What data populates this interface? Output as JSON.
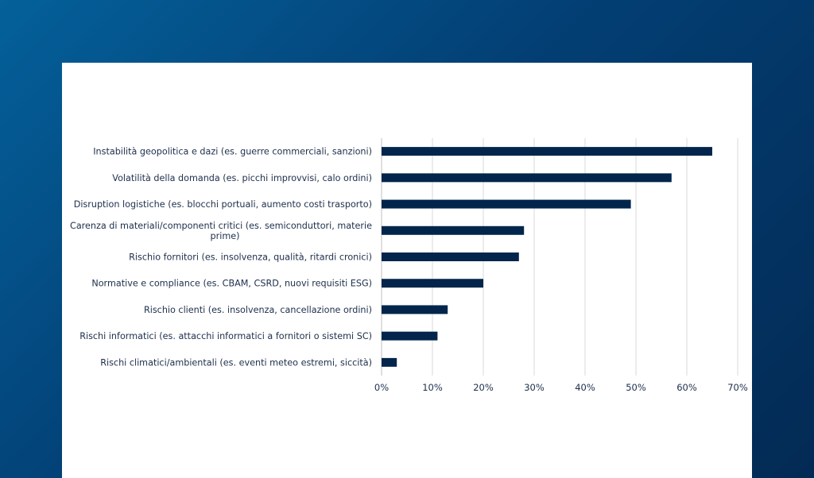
{
  "chart_data": {
    "type": "bar",
    "orientation": "horizontal",
    "title": "",
    "xlabel": "",
    "ylabel": "",
    "xlim": [
      0,
      70
    ],
    "x_ticks": [
      0,
      10,
      20,
      30,
      40,
      50,
      60,
      70
    ],
    "tick_format": "{v}%",
    "grid": "vertical",
    "bar_color": "#03254c",
    "categories": [
      [
        "Instabilità geopolitica e dazi (es. guerre commerciali, sanzioni)"
      ],
      [
        "Volatilità della domanda (es. picchi improvvisi, calo ordini)"
      ],
      [
        "Disruption logistiche (es. blocchi portuali, aumento costi trasporto)"
      ],
      [
        "Carenza di materiali/componenti critici (es. semiconduttori, materie",
        "prime)"
      ],
      [
        "Rischio fornitori (es. insolvenza, qualità, ritardi cronici)"
      ],
      [
        "Normative e compliance (es. CBAM, CSRD, nuovi requisiti ESG)"
      ],
      [
        "Rischio clienti (es. insolvenza, cancellazione ordini)"
      ],
      [
        "Rischi informatici (es. attacchi informatici a fornitori o sistemi SC)"
      ],
      [
        "Rischi climatici/ambientali (es. eventi meteo estremi, siccità)"
      ]
    ],
    "values": [
      65,
      57,
      49,
      28,
      27,
      20,
      13,
      11,
      3
    ]
  }
}
